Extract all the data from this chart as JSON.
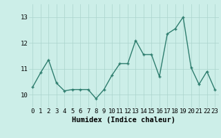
{
  "x": [
    0,
    1,
    2,
    3,
    4,
    5,
    6,
    7,
    8,
    9,
    10,
    11,
    12,
    13,
    14,
    15,
    16,
    17,
    18,
    19,
    20,
    21,
    22,
    23
  ],
  "y": [
    10.3,
    10.85,
    11.35,
    10.45,
    10.15,
    10.2,
    10.2,
    10.2,
    9.85,
    10.2,
    10.75,
    11.2,
    11.2,
    12.1,
    11.55,
    11.55,
    10.7,
    12.35,
    12.55,
    13.0,
    11.05,
    10.4,
    10.9,
    10.2
  ],
  "line_color": "#2e7d6e",
  "marker": "+",
  "marker_size": 3,
  "background_color": "#cceee8",
  "grid_color": "#aad4cc",
  "xlabel": "Humidex (Indice chaleur)",
  "xlabel_fontsize": 7.5,
  "ylim": [
    9.5,
    13.5
  ],
  "xlim": [
    -0.5,
    23.5
  ],
  "yticks": [
    10,
    11,
    12,
    13
  ],
  "xticks": [
    0,
    1,
    2,
    3,
    4,
    5,
    6,
    7,
    8,
    9,
    10,
    11,
    12,
    13,
    14,
    15,
    16,
    17,
    18,
    19,
    20,
    21,
    22,
    23
  ],
  "tick_fontsize": 6.5,
  "line_width": 1.0
}
